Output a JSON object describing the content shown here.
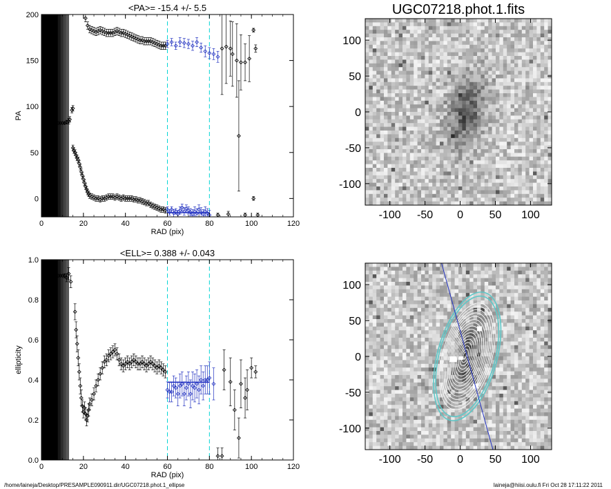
{
  "footer": {
    "left": "/home/laineja/Desktop/PRESAMPLE090911.dir/UGC07218.phot.1_ellipse",
    "right": "laineja@hiisi.oulu.fi  Fri Oct 28 17:11:22 2011"
  },
  "colors": {
    "range_line": "#00d4d4",
    "fit_line": "#2030c0",
    "points": "#000000",
    "fit_points": "#2030c0",
    "contours": "#ffffff",
    "contour_outer": "#5ec8c8",
    "pa_line": "#2030c0"
  },
  "chart_data": [
    {
      "type": "scatter",
      "title": "<PA>= -15.4 +/-   5.5",
      "xlabel": "RAD (pix)",
      "ylabel": "PA",
      "xlim": [
        0,
        120
      ],
      "ylim": [
        -20,
        200
      ],
      "xticks": [
        0,
        20,
        40,
        60,
        80,
        100,
        120
      ],
      "yticks": [
        0,
        50,
        100,
        150,
        200
      ],
      "shaded_region": [
        0,
        13
      ],
      "range_lines": [
        60,
        80
      ],
      "fit": {
        "x": [
          60,
          80
        ],
        "y": -15.4
      },
      "points": [
        [
          1,
          82,
          0
        ],
        [
          2,
          82,
          0
        ],
        [
          3,
          82,
          0
        ],
        [
          4,
          82,
          0
        ],
        [
          5,
          82,
          0
        ],
        [
          6,
          82,
          0
        ],
        [
          7,
          82,
          0
        ],
        [
          8,
          82,
          0
        ],
        [
          9,
          82,
          0
        ],
        [
          10,
          82,
          0
        ],
        [
          11,
          82,
          1
        ],
        [
          12,
          83,
          2
        ],
        [
          13,
          84,
          3
        ],
        [
          13.5,
          86,
          3
        ],
        [
          14.5,
          96,
          3
        ],
        [
          15,
          98,
          3
        ],
        [
          15,
          55,
          3
        ],
        [
          15.5,
          52,
          3
        ],
        [
          16,
          50,
          3
        ],
        [
          16.5,
          47,
          3
        ],
        [
          17,
          44,
          3
        ],
        [
          17.5,
          42,
          3
        ],
        [
          18,
          38,
          3
        ],
        [
          18.5,
          34,
          3
        ],
        [
          19,
          29,
          3
        ],
        [
          19.5,
          25,
          3
        ],
        [
          20,
          21,
          3
        ],
        [
          20.5,
          17,
          3
        ],
        [
          21,
          13,
          3
        ],
        [
          21.5,
          10,
          3
        ],
        [
          22,
          7,
          3
        ],
        [
          22.5,
          5,
          3
        ],
        [
          23,
          3,
          3
        ],
        [
          24,
          2,
          3
        ],
        [
          25,
          1,
          3
        ],
        [
          26,
          0,
          3
        ],
        [
          27,
          0,
          3
        ],
        [
          28,
          -1,
          3
        ],
        [
          29,
          0,
          3
        ],
        [
          30,
          0,
          3
        ],
        [
          31,
          1,
          3
        ],
        [
          32,
          2,
          3
        ],
        [
          33,
          2,
          3
        ],
        [
          34,
          2,
          3
        ],
        [
          35,
          1,
          3
        ],
        [
          36,
          2,
          3
        ],
        [
          37,
          1,
          3
        ],
        [
          38,
          0,
          3
        ],
        [
          39,
          1,
          3
        ],
        [
          40,
          0,
          3
        ],
        [
          41,
          0,
          3
        ],
        [
          42,
          0,
          3
        ],
        [
          43,
          0,
          3
        ],
        [
          44,
          -1,
          3
        ],
        [
          45,
          -1,
          3
        ],
        [
          46,
          -2,
          3
        ],
        [
          47,
          -2,
          3
        ],
        [
          48,
          -3,
          3
        ],
        [
          49,
          -4,
          3
        ],
        [
          50,
          -5,
          3
        ],
        [
          51,
          -5,
          3
        ],
        [
          52,
          -7,
          3
        ],
        [
          53,
          -8,
          3
        ],
        [
          54,
          -9,
          3
        ],
        [
          55,
          -10,
          3
        ],
        [
          56,
          -11,
          3
        ],
        [
          57,
          -12,
          3
        ],
        [
          58,
          -12,
          3
        ],
        [
          59,
          -13,
          3
        ],
        [
          21,
          196,
          4
        ],
        [
          22,
          188,
          4
        ],
        [
          23,
          184,
          4
        ],
        [
          24,
          183,
          4
        ],
        [
          25,
          182,
          4
        ],
        [
          26,
          181,
          4
        ],
        [
          27,
          182,
          4
        ],
        [
          28,
          183,
          4
        ],
        [
          29,
          182,
          4
        ],
        [
          30,
          181,
          4
        ],
        [
          31,
          180,
          4
        ],
        [
          32,
          180,
          4
        ],
        [
          33,
          180,
          4
        ],
        [
          34,
          180,
          4
        ],
        [
          35,
          181,
          4
        ],
        [
          36,
          182,
          4
        ],
        [
          37,
          181,
          4
        ],
        [
          38,
          180,
          4
        ],
        [
          39,
          180,
          4
        ],
        [
          40,
          179,
          4
        ],
        [
          41,
          178,
          4
        ],
        [
          42,
          177,
          4
        ],
        [
          43,
          176,
          4
        ],
        [
          44,
          175,
          4
        ],
        [
          45,
          174,
          4
        ],
        [
          46,
          173,
          4
        ],
        [
          47,
          172,
          4
        ],
        [
          48,
          172,
          4
        ],
        [
          49,
          171,
          4
        ],
        [
          50,
          171,
          4
        ],
        [
          51,
          171,
          4
        ],
        [
          52,
          171,
          4
        ],
        [
          53,
          170,
          4
        ],
        [
          54,
          169,
          4
        ],
        [
          55,
          168,
          4
        ],
        [
          56,
          167,
          4
        ],
        [
          57,
          166,
          4
        ],
        [
          58,
          166,
          4
        ],
        [
          59,
          166,
          4
        ],
        [
          86,
          163,
          50
        ],
        [
          88,
          165,
          40
        ],
        [
          90,
          163,
          30
        ],
        [
          91,
          157,
          35
        ],
        [
          93,
          150,
          40
        ],
        [
          95,
          148,
          30
        ],
        [
          97,
          148,
          20
        ],
        [
          99,
          152,
          25
        ],
        [
          101,
          183,
          2
        ],
        [
          102,
          163,
          4
        ],
        [
          94,
          68,
          60
        ],
        [
          84,
          -18,
          2
        ],
        [
          89,
          -17,
          3
        ],
        [
          97,
          -18,
          2
        ],
        [
          101,
          0,
          2
        ],
        [
          103,
          -18,
          2
        ]
      ],
      "fit_points": [
        [
          60,
          -12,
          3
        ],
        [
          61,
          -15,
          3
        ],
        [
          62,
          -12,
          3
        ],
        [
          63,
          -16,
          4
        ],
        [
          64,
          -14,
          3
        ],
        [
          65,
          -17,
          4
        ],
        [
          66,
          -13,
          4
        ],
        [
          67,
          -10,
          4
        ],
        [
          68,
          -14,
          4
        ],
        [
          69,
          -11,
          4
        ],
        [
          70,
          -13,
          4
        ],
        [
          71,
          -15,
          4
        ],
        [
          72,
          -17,
          5
        ],
        [
          73,
          -14,
          5
        ],
        [
          74,
          -16,
          5
        ],
        [
          75,
          -12,
          5
        ],
        [
          76,
          -15,
          5
        ],
        [
          77,
          -17,
          5
        ],
        [
          78,
          -14,
          5
        ],
        [
          79,
          -16,
          5
        ],
        [
          80,
          -18,
          5
        ],
        [
          60,
          168,
          4
        ],
        [
          62,
          170,
          4
        ],
        [
          64,
          166,
          4
        ],
        [
          66,
          170,
          5
        ],
        [
          68,
          169,
          5
        ],
        [
          70,
          168,
          5
        ],
        [
          72,
          166,
          5
        ],
        [
          74,
          170,
          5
        ],
        [
          76,
          164,
          5
        ],
        [
          78,
          160,
          6
        ],
        [
          80,
          158,
          6
        ],
        [
          82,
          157,
          6
        ],
        [
          84,
          154,
          6
        ]
      ]
    },
    {
      "type": "scatter",
      "title": "<ELL>= 0.388 +/-  0.043",
      "xlabel": "RAD (pix)",
      "ylabel": "ellipticity",
      "xlim": [
        0,
        120
      ],
      "ylim": [
        0,
        1
      ],
      "xticks": [
        0,
        20,
        40,
        60,
        80,
        100,
        120
      ],
      "yticks": [
        "0.0",
        "0.2",
        "0.4",
        "0.6",
        "0.8",
        "1.0"
      ],
      "shaded_region": [
        0,
        13
      ],
      "range_lines": [
        60,
        80
      ],
      "fit": {
        "x": [
          60,
          80
        ],
        "y": 0.388
      },
      "points": [
        [
          1,
          0.92,
          0
        ],
        [
          2,
          0.92,
          0
        ],
        [
          3,
          0.92,
          0
        ],
        [
          4,
          0.92,
          0
        ],
        [
          5,
          0.92,
          0
        ],
        [
          6,
          0.92,
          0
        ],
        [
          7,
          0.92,
          0
        ],
        [
          8,
          0.92,
          0
        ],
        [
          9,
          0.92,
          0
        ],
        [
          10,
          0.92,
          0
        ],
        [
          11,
          0.92,
          0.01
        ],
        [
          12,
          0.91,
          0.02
        ],
        [
          13,
          0.93,
          0.03
        ],
        [
          14,
          0.89,
          0.03
        ],
        [
          16,
          0.74,
          0.04
        ],
        [
          16.5,
          0.65,
          0.04
        ],
        [
          17,
          0.58,
          0.04
        ],
        [
          17.5,
          0.51,
          0.04
        ],
        [
          18,
          0.44,
          0.04
        ],
        [
          18.5,
          0.37,
          0.04
        ],
        [
          19,
          0.31,
          0.04
        ],
        [
          19.5,
          0.27,
          0.03
        ],
        [
          20,
          0.24,
          0.03
        ],
        [
          20.5,
          0.26,
          0.03
        ],
        [
          21,
          0.23,
          0.03
        ],
        [
          21.5,
          0.2,
          0.03
        ],
        [
          22,
          0.22,
          0.03
        ],
        [
          22.5,
          0.25,
          0.03
        ],
        [
          23,
          0.28,
          0.03
        ],
        [
          24,
          0.3,
          0.03
        ],
        [
          25,
          0.33,
          0.03
        ],
        [
          26,
          0.37,
          0.03
        ],
        [
          27,
          0.4,
          0.03
        ],
        [
          28,
          0.43,
          0.03
        ],
        [
          29,
          0.46,
          0.03
        ],
        [
          30,
          0.49,
          0.03
        ],
        [
          31,
          0.5,
          0.03
        ],
        [
          32,
          0.52,
          0.03
        ],
        [
          33,
          0.53,
          0.03
        ],
        [
          34,
          0.54,
          0.03
        ],
        [
          35,
          0.55,
          0.03
        ],
        [
          36,
          0.53,
          0.03
        ],
        [
          37,
          0.5,
          0.03
        ],
        [
          38,
          0.48,
          0.03
        ],
        [
          39,
          0.47,
          0.03
        ],
        [
          40,
          0.48,
          0.03
        ],
        [
          41,
          0.49,
          0.03
        ],
        [
          42,
          0.48,
          0.03
        ],
        [
          43,
          0.49,
          0.03
        ],
        [
          44,
          0.5,
          0.03
        ],
        [
          45,
          0.49,
          0.03
        ],
        [
          46,
          0.48,
          0.03
        ],
        [
          47,
          0.48,
          0.03
        ],
        [
          48,
          0.49,
          0.03
        ],
        [
          49,
          0.48,
          0.03
        ],
        [
          50,
          0.47,
          0.03
        ],
        [
          51,
          0.48,
          0.03
        ],
        [
          52,
          0.49,
          0.03
        ],
        [
          53,
          0.48,
          0.03
        ],
        [
          54,
          0.47,
          0.03
        ],
        [
          55,
          0.46,
          0.03
        ],
        [
          56,
          0.47,
          0.03
        ],
        [
          57,
          0.46,
          0.03
        ],
        [
          58,
          0.45,
          0.03
        ],
        [
          59,
          0.44,
          0.03
        ],
        [
          84,
          0.02,
          0.04
        ],
        [
          86,
          0.02,
          0.04
        ],
        [
          87,
          0.45,
          0.1
        ],
        [
          90,
          0.39,
          0.12
        ],
        [
          92,
          0.25,
          0.1
        ],
        [
          94,
          0.11,
          0.1
        ],
        [
          95,
          0.38,
          0.12
        ],
        [
          97,
          0.31,
          0.1
        ],
        [
          98,
          0.35,
          0.1
        ],
        [
          100,
          0.46,
          0.05
        ],
        [
          102,
          0.44,
          0.03
        ]
      ],
      "fit_points": [
        [
          60,
          0.35,
          0.04
        ],
        [
          61,
          0.34,
          0.05
        ],
        [
          62,
          0.34,
          0.05
        ],
        [
          63,
          0.37,
          0.05
        ],
        [
          64,
          0.36,
          0.05
        ],
        [
          65,
          0.33,
          0.06
        ],
        [
          66,
          0.37,
          0.06
        ],
        [
          67,
          0.38,
          0.06
        ],
        [
          68,
          0.33,
          0.06
        ],
        [
          69,
          0.36,
          0.06
        ],
        [
          70,
          0.38,
          0.06
        ],
        [
          71,
          0.33,
          0.07
        ],
        [
          72,
          0.37,
          0.07
        ],
        [
          73,
          0.36,
          0.07
        ],
        [
          74,
          0.38,
          0.07
        ],
        [
          75,
          0.35,
          0.07
        ],
        [
          76,
          0.4,
          0.07
        ],
        [
          77,
          0.37,
          0.07
        ],
        [
          78,
          0.4,
          0.07
        ],
        [
          79,
          0.4,
          0.07
        ],
        [
          80,
          0.41,
          0.08
        ],
        [
          82,
          0.38,
          0.08
        ]
      ]
    },
    {
      "type": "heatmap",
      "title": "UGC07218.phot.1.fits",
      "xlim": [
        -135,
        130
      ],
      "ylim": [
        -130,
        130
      ],
      "xticks": [
        -100,
        -50,
        0,
        50,
        100
      ],
      "yticks": [
        -100,
        -50,
        0,
        50,
        100
      ],
      "galaxy": {
        "x": 10,
        "y": 0,
        "major": 60,
        "minor": 28,
        "pa": -15.4
      },
      "overlay": false
    },
    {
      "type": "heatmap",
      "xlim": [
        -135,
        130
      ],
      "ylim": [
        -130,
        130
      ],
      "xticks": [
        -100,
        -50,
        0,
        50,
        100
      ],
      "yticks": [
        -100,
        -50,
        0,
        50,
        100
      ],
      "galaxy": {
        "x": 10,
        "y": 0,
        "major": 60,
        "minor": 28,
        "pa": -15.4
      },
      "overlay": true
    }
  ]
}
